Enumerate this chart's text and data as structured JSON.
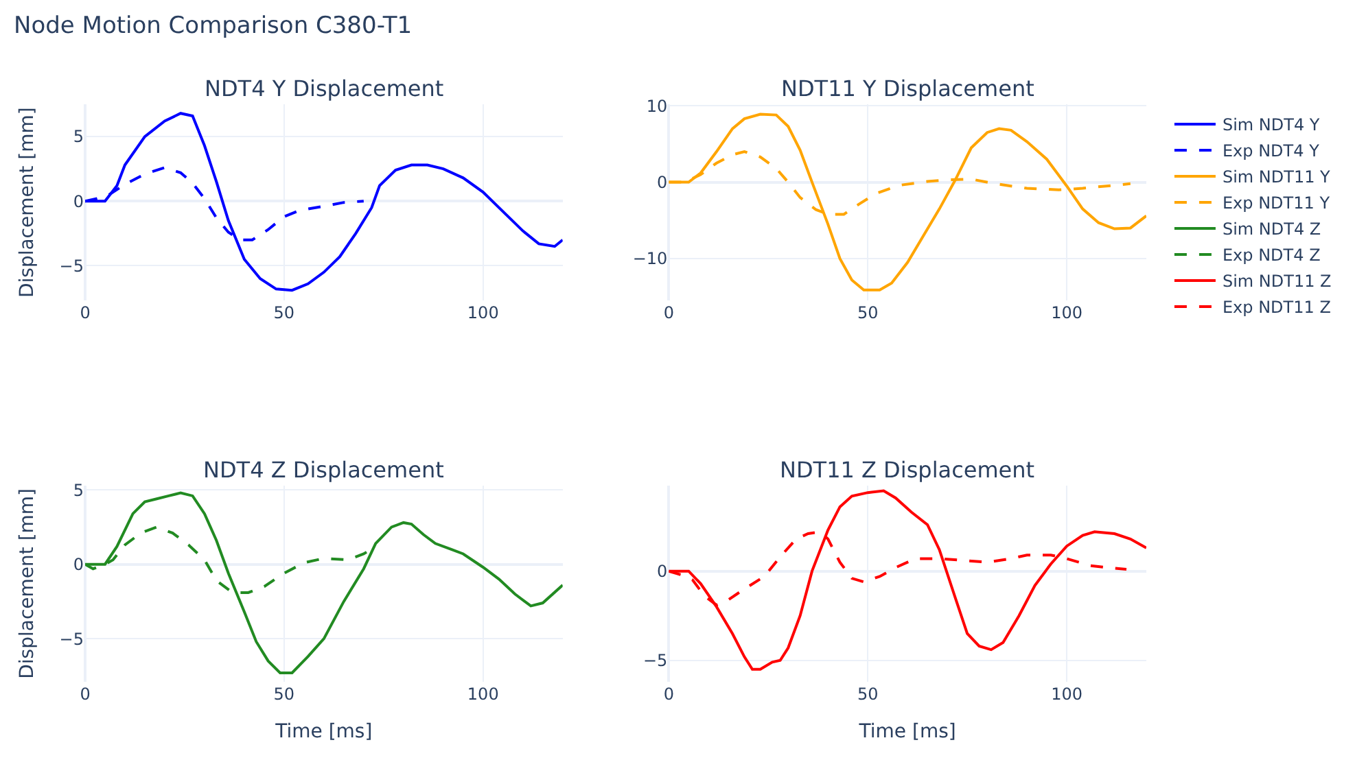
{
  "chart_data": [
    {
      "type": "line",
      "title": "NDT4 Y Displacement",
      "ylabel": "Displacement [mm]",
      "annotations": [
        "Node Motion Comparison C380-T1"
      ],
      "xlim": [
        0,
        120
      ],
      "xticks": [
        0,
        50,
        100
      ],
      "ylim": [
        -7.7,
        7.5
      ],
      "yticks": [
        -5,
        0,
        5
      ],
      "grid": true,
      "legend": "right",
      "series": [
        {
          "name": "Sim NDT4 Y",
          "color": "#0000ff",
          "line_style": "solid",
          "x": [
            0,
            5,
            8,
            10,
            15,
            20,
            24,
            27,
            30,
            33,
            36,
            40,
            44,
            48,
            52,
            56,
            60,
            64,
            68,
            72,
            74,
            78,
            82,
            86,
            90,
            95,
            100,
            105,
            110,
            114,
            118,
            120
          ],
          "values": [
            0,
            0,
            1.2,
            2.8,
            5,
            6.2,
            6.8,
            6.6,
            4.3,
            1.5,
            -1.5,
            -4.5,
            -6,
            -6.8,
            -6.9,
            -6.4,
            -5.5,
            -4.3,
            -2.5,
            -0.5,
            1.2,
            2.4,
            2.8,
            2.8,
            2.5,
            1.8,
            0.7,
            -0.8,
            -2.3,
            -3.3,
            -3.5,
            -3.0
          ]
        },
        {
          "name": "Exp NDT4 Y",
          "color": "#0000ff",
          "line_style": "dashed",
          "x": [
            0,
            3,
            6,
            10,
            15,
            20,
            24,
            27,
            30,
            33,
            36,
            39,
            42,
            46,
            50,
            54,
            60,
            65,
            70
          ],
          "values": [
            0,
            0.2,
            0.5,
            1.3,
            2.1,
            2.6,
            2.2,
            1.4,
            0.2,
            -1.3,
            -2.4,
            -3.0,
            -3.0,
            -2.2,
            -1.2,
            -0.7,
            -0.4,
            -0.1,
            0
          ]
        }
      ]
    },
    {
      "type": "line",
      "title": "NDT11 Y Displacement",
      "xlim": [
        0,
        120
      ],
      "xticks": [
        0,
        50,
        100
      ],
      "ylim": [
        -15.5,
        10.2
      ],
      "yticks": [
        -10,
        0,
        10
      ],
      "grid": true,
      "legend": "right",
      "series": [
        {
          "name": "Sim NDT11 Y",
          "color": "#ffa500",
          "line_style": "solid",
          "x": [
            0,
            5,
            8,
            12,
            16,
            19,
            23,
            27,
            30,
            33,
            36,
            40,
            43,
            46,
            49,
            53,
            56,
            60,
            64,
            68,
            72,
            76,
            80,
            83,
            86,
            90,
            95,
            100,
            104,
            108,
            112,
            116,
            120
          ],
          "values": [
            0,
            0,
            1.2,
            4,
            7,
            8.3,
            8.9,
            8.8,
            7.3,
            4.2,
            0,
            -5.5,
            -10,
            -12.8,
            -14.1,
            -14.1,
            -13.2,
            -10.5,
            -7,
            -3.5,
            0.3,
            4.5,
            6.5,
            7,
            6.8,
            5.3,
            3,
            -0.5,
            -3.5,
            -5.3,
            -6.1,
            -6,
            -4.4
          ]
        },
        {
          "name": "Exp NDT11 Y",
          "color": "#ffa500",
          "line_style": "dashed",
          "x": [
            0,
            4,
            8,
            12,
            16,
            19,
            23,
            27,
            30,
            33,
            37,
            40,
            44,
            48,
            52,
            58,
            65,
            70,
            76,
            82,
            90,
            98,
            104,
            110,
            116
          ],
          "values": [
            0,
            0,
            1,
            2.5,
            3.6,
            4,
            3.3,
            1.8,
            0,
            -2,
            -3.6,
            -4.2,
            -4.2,
            -2.8,
            -1.5,
            -0.4,
            0.1,
            0.3,
            0.4,
            -0.2,
            -0.8,
            -1,
            -0.8,
            -0.5,
            -0.2
          ]
        }
      ]
    },
    {
      "type": "line",
      "title": "NDT4 Z Displacement",
      "xlabel": "Time [ms]",
      "ylabel": "Displacement [mm]",
      "xlim": [
        0,
        120
      ],
      "xticks": [
        0,
        50,
        100
      ],
      "ylim": [
        -7.9,
        5.3
      ],
      "yticks": [
        -5,
        0,
        5
      ],
      "grid": true,
      "legend": "right",
      "series": [
        {
          "name": "Sim NDT4 Z",
          "color": "#228b22",
          "line_style": "solid",
          "x": [
            0,
            5,
            8,
            12,
            15,
            18,
            21,
            24,
            27,
            30,
            33,
            36,
            40,
            43,
            46,
            49,
            52,
            56,
            60,
            65,
            70,
            73,
            77,
            80,
            82,
            85,
            88,
            92,
            95,
            100,
            104,
            108,
            112,
            115,
            120
          ],
          "values": [
            0,
            0,
            1.2,
            3.4,
            4.2,
            4.4,
            4.6,
            4.8,
            4.6,
            3.4,
            1.6,
            -0.6,
            -3.2,
            -5.2,
            -6.5,
            -7.3,
            -7.3,
            -6.2,
            -5,
            -2.5,
            -0.3,
            1.4,
            2.5,
            2.8,
            2.7,
            2,
            1.4,
            1.0,
            0.7,
            -0.2,
            -1,
            -2,
            -2.8,
            -2.6,
            -1.4
          ]
        },
        {
          "name": "Exp NDT4 Z",
          "color": "#228b22",
          "line_style": "dashed",
          "x": [
            0,
            2,
            5,
            7,
            10,
            14,
            18,
            22,
            26,
            30,
            33,
            37,
            41,
            45,
            50,
            55,
            60,
            66,
            70,
            73
          ],
          "values": [
            0,
            -0.3,
            0,
            0.3,
            1.3,
            2.1,
            2.5,
            2.1,
            1.3,
            0.3,
            -1.1,
            -1.9,
            -1.9,
            -1.5,
            -0.6,
            0.1,
            0.4,
            0.3,
            0.7,
            1.2
          ]
        }
      ]
    },
    {
      "type": "line",
      "title": "NDT11 Z Displacement",
      "xlabel": "Time [ms]",
      "xlim": [
        0,
        120
      ],
      "xticks": [
        0,
        50,
        100
      ],
      "ylim": [
        -6.2,
        4.8
      ],
      "yticks": [
        -5,
        0
      ],
      "grid": true,
      "legend": "right",
      "series": [
        {
          "name": "Sim NDT11 Z",
          "color": "#ff0000",
          "line_style": "solid",
          "x": [
            0,
            5,
            8,
            12,
            16,
            19,
            21,
            23,
            26,
            28,
            30,
            33,
            36,
            40,
            43,
            46,
            50,
            54,
            57,
            61,
            65,
            68,
            72,
            75,
            78,
            81,
            84,
            88,
            92,
            96,
            100,
            104,
            107,
            112,
            116,
            120
          ],
          "values": [
            0,
            0,
            -0.7,
            -2,
            -3.5,
            -4.8,
            -5.5,
            -5.5,
            -5.1,
            -5,
            -4.3,
            -2.5,
            0,
            2.3,
            3.6,
            4.2,
            4.4,
            4.5,
            4.1,
            3.3,
            2.6,
            1.2,
            -1.5,
            -3.5,
            -4.2,
            -4.4,
            -4,
            -2.5,
            -0.8,
            0.4,
            1.4,
            2,
            2.2,
            2.1,
            1.8,
            1.3
          ]
        },
        {
          "name": "Exp NDT11 Z",
          "color": "#ff0000",
          "line_style": "dashed",
          "x": [
            0,
            3,
            6,
            9,
            12,
            15,
            19,
            24,
            28,
            32,
            35,
            38,
            40,
            43,
            46,
            49,
            53,
            57,
            62,
            68,
            74,
            80,
            86,
            90,
            96,
            100,
            106,
            110,
            115
          ],
          "values": [
            0,
            -0.2,
            -0.5,
            -1.4,
            -1.9,
            -1.6,
            -1,
            -0.3,
            0.8,
            1.8,
            2.1,
            2.2,
            1.8,
            0.5,
            -0.4,
            -0.6,
            -0.3,
            0.2,
            0.7,
            0.7,
            0.6,
            0.5,
            0.7,
            0.9,
            0.9,
            0.7,
            0.3,
            0.2,
            0.1
          ]
        }
      ]
    }
  ]
}
